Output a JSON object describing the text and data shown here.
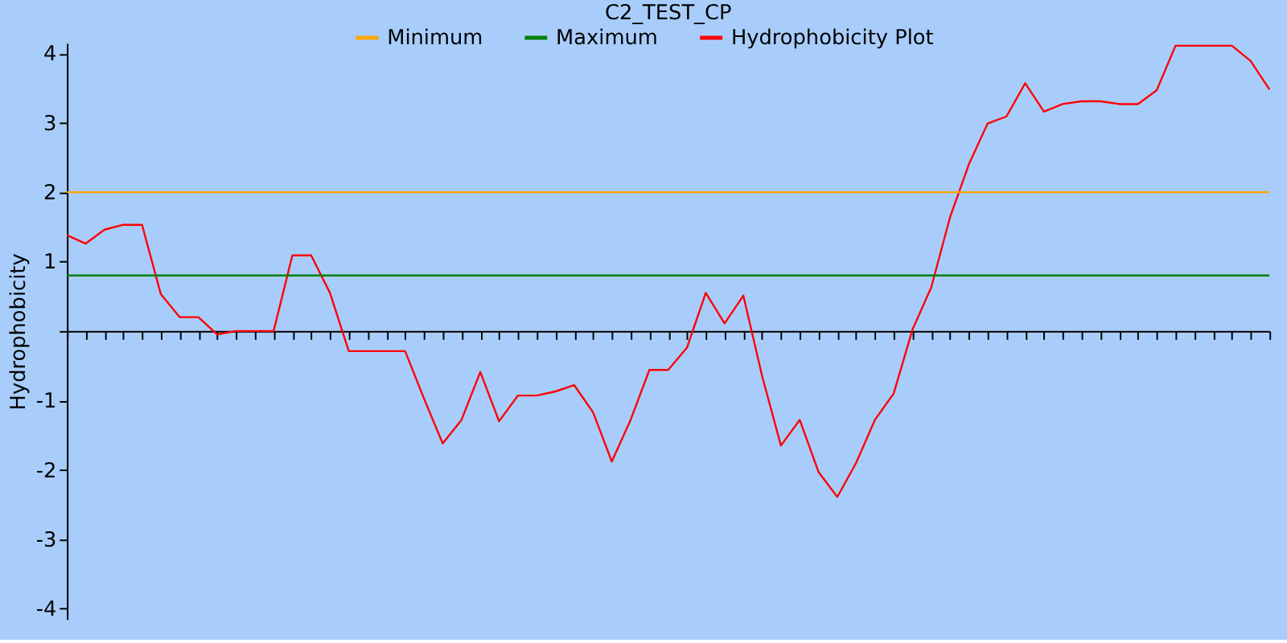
{
  "chart_data": {
    "type": "line",
    "title": "C2_TEST_CP",
    "ylabel": "Hydrophobicity",
    "categories": [
      null,
      null,
      null,
      null,
      null,
      null,
      null,
      null,
      null,
      null,
      null,
      null,
      null,
      null,
      null,
      null,
      null,
      null,
      null,
      null,
      null,
      null,
      null,
      null,
      null,
      null,
      null,
      null,
      null,
      null,
      null,
      null,
      null,
      null,
      null,
      null,
      null,
      null,
      null,
      null,
      null,
      null,
      null,
      null,
      null,
      null,
      null,
      null,
      null,
      null,
      null,
      null,
      null,
      null,
      null,
      null,
      null,
      null,
      null,
      null,
      null,
      null,
      null,
      null,
      null
    ],
    "series": [
      {
        "name": "Hydrophobicity Plot",
        "color": "#ff0000",
        "values": [
          1.38,
          1.26,
          1.46,
          1.53,
          1.53,
          0.53,
          0.2,
          0.2,
          -0.05,
          0,
          0,
          0,
          1.09,
          1.09,
          0.55,
          -0.29,
          -0.29,
          -0.29,
          -0.29,
          -0.97,
          -1.62,
          -1.28,
          -0.59,
          -1.3,
          -0.93,
          -0.93,
          -0.87,
          -0.78,
          -1.17,
          -1.88,
          -1.28,
          -0.56,
          -0.56,
          -0.24,
          0.55,
          0.11,
          0.51,
          -0.65,
          -1.65,
          -1.28,
          -2.03,
          -2.39,
          -1.9,
          -1.28,
          -0.9,
          0.02,
          0.63,
          1.64,
          2.4,
          2.99,
          3.09,
          3.57,
          3.16,
          3.27,
          3.31,
          3.31,
          3.27,
          3.27,
          3.47,
          4.11,
          4.11,
          4.11,
          4.11,
          3.89,
          3.48
        ]
      }
    ],
    "ref_lines": [
      {
        "axis": "y",
        "value": 2,
        "label": "Minimum",
        "color": "#ffa500"
      },
      {
        "axis": "y",
        "value": 0.8,
        "label": "Maximum",
        "color": "#008000"
      }
    ],
    "ylim": [
      -4.15,
      4.15
    ],
    "yticks": [
      -4,
      -3,
      -2,
      -1,
      {
        "value": 0,
        "label": null
      },
      1,
      2,
      3,
      4
    ],
    "tick_labels": "y",
    "grid": false,
    "legend": "top",
    "marker": "none",
    "line_style": "solid"
  }
}
